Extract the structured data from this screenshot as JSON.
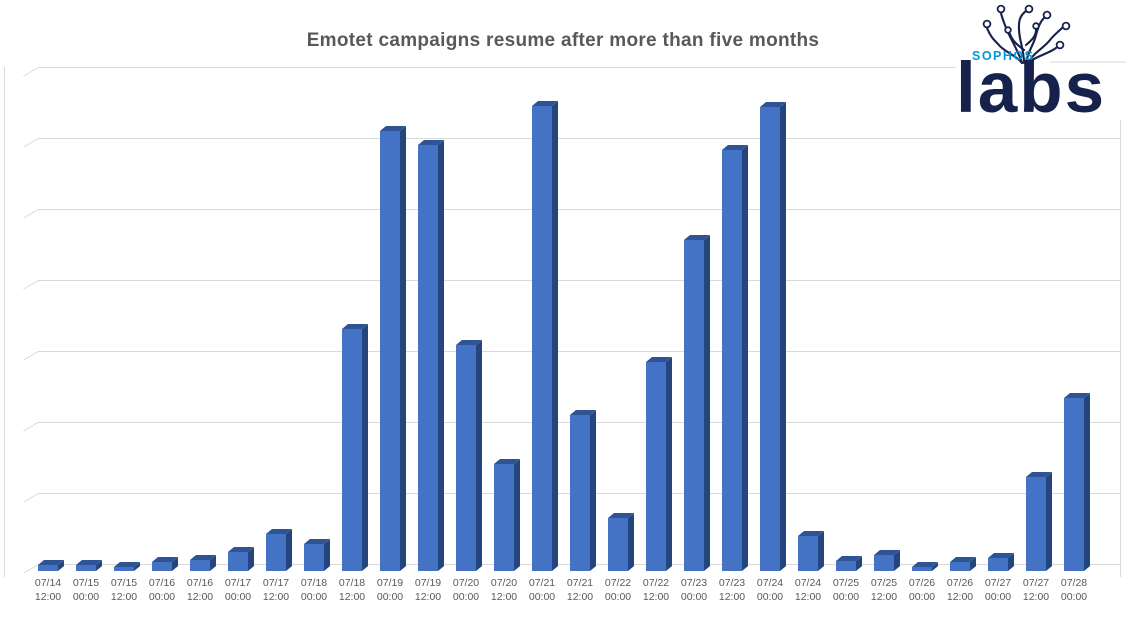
{
  "logo": {
    "brand_top": "SOPHOS",
    "brand_bottom": "labs",
    "brand_blue": "#0098da",
    "brand_navy": "#16224c"
  },
  "chart_data": {
    "type": "bar",
    "style": "3d-column",
    "title": "Emotet campaigns resume after more than five months",
    "xlabel": "",
    "ylabel": "",
    "y_tick_labels_visible": false,
    "grid": true,
    "legend": "none",
    "ylim": [
      0,
      700
    ],
    "gridline_step": 100,
    "categories": [
      "07/14 12:00",
      "07/15 00:00",
      "07/15 12:00",
      "07/16 00:00",
      "07/16 12:00",
      "07/17 00:00",
      "07/17 12:00",
      "07/18 00:00",
      "07/18 12:00",
      "07/19 00:00",
      "07/19 12:00",
      "07/20 00:00",
      "07/20 12:00",
      "07/21 00:00",
      "07/21 12:00",
      "07/22 00:00",
      "07/22 12:00",
      "07/23 00:00",
      "07/23 12:00",
      "07/24 00:00",
      "07/24 12:00",
      "07/25 00:00",
      "07/25 12:00",
      "07/26 00:00",
      "07/26 12:00",
      "07/27 00:00",
      "07/27 12:00",
      "07/28 00:00"
    ],
    "values": [
      8,
      8,
      5,
      13,
      15,
      27,
      52,
      38,
      341,
      620,
      600,
      318,
      150,
      655,
      220,
      74,
      294,
      466,
      593,
      653,
      49,
      14,
      22,
      6,
      12,
      19,
      133,
      243
    ],
    "values_unit": "relative (one gridline interval = 100, y axis unlabeled)",
    "colors": {
      "bar_front": "#4472c4",
      "bar_side": "#24467d",
      "bar_top": "#2f5496",
      "gridline": "#d9d9d9",
      "axis_text": "#595959",
      "title_text": "#595959"
    }
  }
}
